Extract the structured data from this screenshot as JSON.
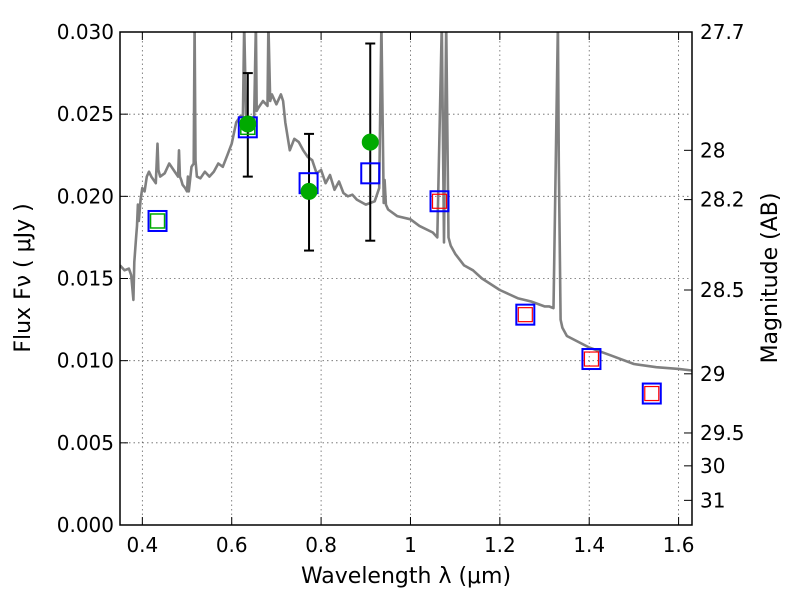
{
  "chart_data": {
    "type": "scatter",
    "xlabel": "Wavelength  λ (μm)",
    "ylabel": "Flux  Fν  ( μJy )",
    "y2label": "Magnitude (AB)",
    "xlim": [
      0.35,
      1.63
    ],
    "ylim": [
      0.0,
      0.03
    ],
    "xticks": [
      "0.4",
      "0.6",
      "0.8",
      "1",
      "1.2",
      "1.4",
      "1.6"
    ],
    "xtick_values": [
      0.4,
      0.6,
      0.8,
      1.0,
      1.2,
      1.4,
      1.6
    ],
    "yticks": [
      "0.000",
      "0.005",
      "0.010",
      "0.015",
      "0.020",
      "0.025",
      "0.030"
    ],
    "ytick_values": [
      0.0,
      0.005,
      0.01,
      0.015,
      0.02,
      0.025,
      0.03
    ],
    "y2ticks": [
      "27.7",
      "28",
      "28.2",
      "28.5",
      "29",
      "29.5",
      "30",
      "31"
    ],
    "y2tick_flux": [
      0.03,
      0.0228,
      0.0198,
      0.0143,
      0.0092,
      0.0056,
      0.0036,
      0.0015
    ],
    "grid": true,
    "colors": {
      "template": "#808080",
      "model": "#0000ff",
      "observed": "#00aa00",
      "template_box": "#ff0000",
      "errorbar": "#000000"
    },
    "series": [
      {
        "kind": "template",
        "x": [
          0.35,
          0.36,
          0.37,
          0.375,
          0.38,
          0.382,
          0.386,
          0.388,
          0.39,
          0.392,
          0.396,
          0.4,
          0.405,
          0.41,
          0.415,
          0.42,
          0.43,
          0.434,
          0.436,
          0.44,
          0.45,
          0.46,
          0.47,
          0.48,
          0.482,
          0.484,
          0.487,
          0.49,
          0.496,
          0.5,
          0.502,
          0.504,
          0.51,
          0.515,
          0.517,
          0.519,
          0.522,
          0.53,
          0.54,
          0.55,
          0.56,
          0.57,
          0.58,
          0.59,
          0.6,
          0.61,
          0.62,
          0.625,
          0.628,
          0.632,
          0.636,
          0.64,
          0.65,
          0.654,
          0.656,
          0.66,
          0.67,
          0.68,
          0.682,
          0.686,
          0.69,
          0.7,
          0.71,
          0.715,
          0.72,
          0.73,
          0.74,
          0.75,
          0.76,
          0.77,
          0.78,
          0.79,
          0.8,
          0.81,
          0.82,
          0.83,
          0.84,
          0.85,
          0.86,
          0.87,
          0.88,
          0.9,
          0.92,
          0.93,
          0.935,
          0.94,
          0.942,
          0.945,
          0.95,
          0.97,
          1.0,
          1.02,
          1.05,
          1.06,
          1.07,
          1.075,
          1.08,
          1.085,
          1.09,
          1.1,
          1.12,
          1.14,
          1.16,
          1.2,
          1.24,
          1.27,
          1.3,
          1.31,
          1.32,
          1.33,
          1.332,
          1.336,
          1.34,
          1.35,
          1.4,
          1.45,
          1.5,
          1.55,
          1.6,
          1.63
        ],
        "y": [
          0.0158,
          0.0155,
          0.0156,
          0.0152,
          0.0137,
          0.016,
          0.0175,
          0.0182,
          0.0195,
          0.0185,
          0.0198,
          0.0205,
          0.0203,
          0.0212,
          0.0215,
          0.0212,
          0.0208,
          0.0232,
          0.0216,
          0.0212,
          0.0214,
          0.022,
          0.0216,
          0.0212,
          0.0228,
          0.0212,
          0.021,
          0.0207,
          0.0205,
          0.0203,
          0.0212,
          0.0203,
          0.0218,
          0.022,
          0.0305,
          0.0222,
          0.0212,
          0.0211,
          0.0215,
          0.0212,
          0.0215,
          0.022,
          0.0218,
          0.0225,
          0.0232,
          0.0245,
          0.0249,
          0.0248,
          0.0305,
          0.025,
          0.0245,
          0.0248,
          0.0247,
          0.0305,
          0.0252,
          0.0254,
          0.0258,
          0.0255,
          0.0305,
          0.0258,
          0.0262,
          0.0256,
          0.0262,
          0.0258,
          0.0245,
          0.0228,
          0.0235,
          0.0233,
          0.0228,
          0.0224,
          0.0222,
          0.0214,
          0.0216,
          0.0208,
          0.0213,
          0.0204,
          0.0209,
          0.0202,
          0.02,
          0.0201,
          0.0198,
          0.0195,
          0.0197,
          0.0205,
          0.0305,
          0.0196,
          0.021,
          0.0195,
          0.0192,
          0.0188,
          0.0186,
          0.0182,
          0.0178,
          0.0175,
          0.0305,
          0.0172,
          0.0305,
          0.0175,
          0.017,
          0.0165,
          0.0158,
          0.0155,
          0.015,
          0.0143,
          0.0138,
          0.0136,
          0.0133,
          0.0133,
          0.0132,
          0.0305,
          0.022,
          0.0125,
          0.012,
          0.0115,
          0.0108,
          0.0103,
          0.0098,
          0.0096,
          0.0095,
          0.0094
        ]
      },
      {
        "kind": "model-boxes",
        "name": "",
        "x": [
          0.434,
          0.636,
          0.772,
          0.91,
          1.065,
          1.257,
          1.405,
          1.54
        ],
        "y": [
          0.0185,
          0.0242,
          0.0208,
          0.0214,
          0.0197,
          0.0128,
          0.0101,
          0.008
        ],
        "inner": [
          "green",
          "green",
          "",
          "",
          "red",
          "red",
          "red",
          "red"
        ]
      },
      {
        "kind": "observed",
        "name": "",
        "x": [
          0.636,
          0.773,
          0.91
        ],
        "y": [
          0.0244,
          0.0203,
          0.0233
        ],
        "yerr_low": [
          0.0212,
          0.0167,
          0.0173
        ],
        "yerr_high": [
          0.0275,
          0.0238,
          0.0293
        ]
      }
    ]
  }
}
